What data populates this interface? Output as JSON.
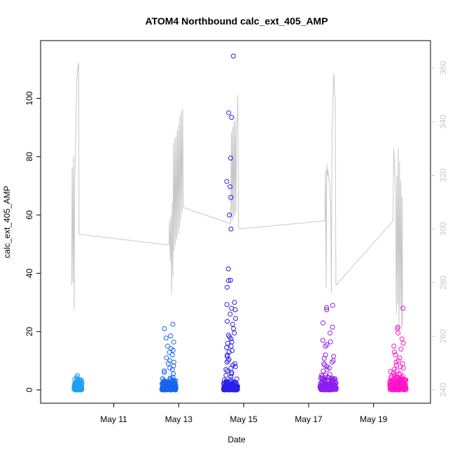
{
  "chart_data": {
    "type": "scatter",
    "title": "ATOM4 Northbound calc_ext_405_AMP",
    "xlabel": "Date",
    "ylabel": "calc_ext_405_AMP",
    "x_unit": "days (May)",
    "xlim": [
      9.2,
      20.3
    ],
    "ylim": [
      0,
      115
    ],
    "x_ticks": [
      {
        "value": 11,
        "label": "May 11"
      },
      {
        "value": 13,
        "label": "May 13"
      },
      {
        "value": 15,
        "label": "May 15"
      },
      {
        "value": 17,
        "label": "May 17"
      },
      {
        "value": 19,
        "label": "May 19"
      }
    ],
    "y_ticks": [
      0,
      20,
      40,
      60,
      80,
      100
    ],
    "y2lim": [
      240,
      365
    ],
    "y2_ticks": [
      240,
      260,
      280,
      300,
      320,
      340,
      360
    ],
    "grid": false,
    "legend": "none",
    "colors": {
      "line": "#c8c8c8",
      "axis": "#000000",
      "right_axis": "#c8c8c8",
      "clusters": [
        "#1ea0f5",
        "#1464f0",
        "#2a1ee6",
        "#8c1ef0",
        "#ff14c8"
      ]
    },
    "clusters": [
      {
        "center": 9.9,
        "spread": 0.12,
        "color_index": 0,
        "low_max": 4,
        "high_values": [
          2.2,
          2.8,
          3.5,
          4.0,
          4.5,
          5.0,
          3.1,
          1.8
        ]
      },
      {
        "center": 12.7,
        "spread": 0.22,
        "color_index": 1,
        "low_max": 5,
        "high_values": [
          22.5,
          21.0,
          18.5,
          17.8,
          16.4,
          15.0,
          14.2,
          13.6,
          12.9,
          12.0,
          11.0,
          10.0,
          9.5,
          9.0,
          8.2,
          7.5,
          7.0,
          6.5,
          6.0,
          5.5
        ]
      },
      {
        "center": 14.6,
        "spread": 0.22,
        "color_index": 2,
        "low_max": 4,
        "high_values": [
          114.5,
          95.0,
          93.5,
          79.5,
          71.5,
          69.7,
          66.0,
          60.0,
          55.2,
          41.5,
          37.6,
          37.5,
          35.2,
          30.0,
          29.3,
          28.0,
          27.5,
          26.0,
          24.5,
          23.5,
          22.5,
          21.0,
          19.5,
          18.8,
          18.2,
          17.5,
          16.5,
          16.0,
          15.0,
          14.5,
          13.5,
          13.0,
          12.0,
          11.5,
          10.5,
          10.0,
          9.5,
          9.0,
          8.5,
          8.0,
          7.5,
          7.0,
          6.5,
          6.0,
          5.5,
          5.0,
          4.5
        ]
      },
      {
        "center": 17.6,
        "spread": 0.25,
        "color_index": 3,
        "low_max": 6,
        "high_values": [
          29.0,
          28.2,
          27.5,
          23.0,
          21.5,
          19.5,
          17.0,
          16.5,
          15.5,
          15.0,
          12.0,
          11.5,
          10.8,
          10.0,
          9.5,
          9.0,
          8.5,
          8.0,
          7.5,
          7.0,
          6.5
        ]
      },
      {
        "center": 19.75,
        "spread": 0.25,
        "color_index": 4,
        "low_max": 7,
        "high_values": [
          28.0,
          21.5,
          21.0,
          19.5,
          17.5,
          16.0,
          15.0,
          14.0,
          13.0,
          12.0,
          11.0,
          10.0,
          9.5,
          9.0,
          8.5,
          8.0,
          7.5,
          7.0
        ]
      }
    ],
    "line_series": {
      "name": "",
      "axis": "right",
      "points": [
        [
          9.7,
          279
        ],
        [
          9.72,
          323
        ],
        [
          9.74,
          280
        ],
        [
          9.76,
          327
        ],
        [
          9.78,
          270
        ],
        [
          9.8,
          318
        ],
        [
          9.83,
          335
        ],
        [
          9.86,
          355
        ],
        [
          9.89,
          360
        ],
        [
          9.92,
          362
        ],
        [
          9.93,
          298
        ],
        [
          12.7,
          294
        ],
        [
          12.72,
          303
        ],
        [
          12.74,
          288
        ],
        [
          12.76,
          305
        ],
        [
          12.78,
          276
        ],
        [
          12.8,
          310
        ],
        [
          12.82,
          282
        ],
        [
          12.84,
          332
        ],
        [
          12.86,
          292
        ],
        [
          12.88,
          334
        ],
        [
          12.9,
          294
        ],
        [
          12.92,
          335
        ],
        [
          12.94,
          296
        ],
        [
          12.96,
          337
        ],
        [
          12.98,
          298
        ],
        [
          13.0,
          339
        ],
        [
          13.02,
          300
        ],
        [
          13.04,
          342
        ],
        [
          13.06,
          303
        ],
        [
          13.08,
          344
        ],
        [
          13.1,
          306
        ],
        [
          13.12,
          345
        ],
        [
          13.14,
          308
        ],
        [
          14.6,
          302
        ],
        [
          14.62,
          336
        ],
        [
          14.64,
          303
        ],
        [
          14.66,
          338
        ],
        [
          14.68,
          304
        ],
        [
          14.7,
          340
        ],
        [
          14.72,
          305
        ],
        [
          14.74,
          341
        ],
        [
          14.76,
          306
        ],
        [
          14.78,
          338
        ],
        [
          14.8,
          340
        ],
        [
          14.82,
          350
        ],
        [
          14.84,
          300
        ],
        [
          17.5,
          303
        ],
        [
          17.52,
          322
        ],
        [
          17.54,
          278
        ],
        [
          17.56,
          324
        ],
        [
          17.58,
          320
        ],
        [
          17.6,
          322
        ],
        [
          17.62,
          318
        ],
        [
          17.64,
          318
        ],
        [
          17.66,
          312
        ],
        [
          17.68,
          310
        ],
        [
          17.7,
          276
        ],
        [
          17.72,
          338
        ],
        [
          17.74,
          342
        ],
        [
          17.76,
          355
        ],
        [
          17.78,
          358
        ],
        [
          17.8,
          350
        ],
        [
          17.82,
          348
        ],
        [
          17.84,
          279
        ],
        [
          19.6,
          303
        ],
        [
          19.62,
          330
        ],
        [
          19.64,
          325
        ],
        [
          19.66,
          320
        ],
        [
          19.68,
          315
        ],
        [
          19.7,
          268
        ],
        [
          19.72,
          320
        ],
        [
          19.74,
          272
        ],
        [
          19.76,
          330
        ],
        [
          19.78,
          262
        ],
        [
          19.8,
          325
        ],
        [
          19.82,
          270
        ],
        [
          19.84,
          318
        ],
        [
          19.86,
          262
        ],
        [
          19.88,
          312
        ],
        [
          19.9,
          264
        ]
      ]
    }
  }
}
